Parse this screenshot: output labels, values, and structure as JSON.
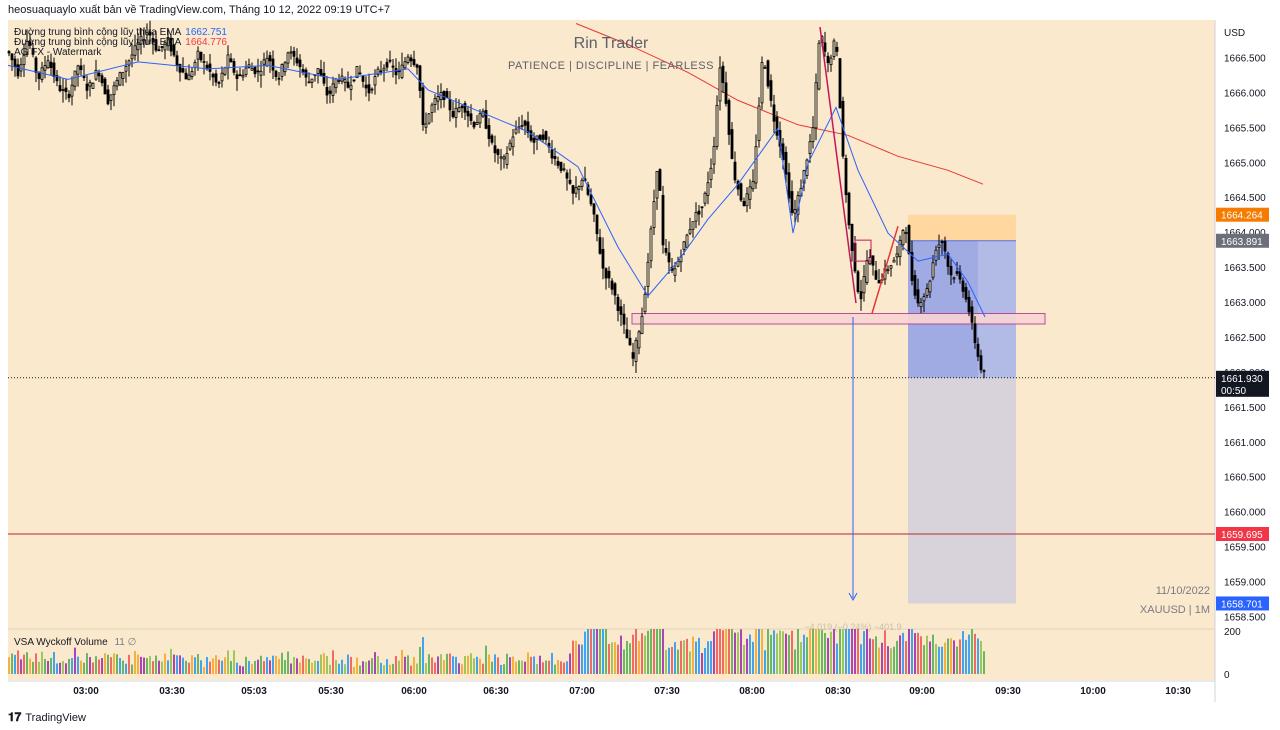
{
  "header": {
    "publisher_line": "heosuaquaylo xuất bản về TradingView.com, Tháng 10 12, 2022 09:19 UTC+7"
  },
  "legend": {
    "rows": [
      {
        "label": "Đường trung bình cộng lũy thừa EMA",
        "value": "1662.751",
        "color": "#2962ff"
      },
      {
        "label": "Đường trung bình cộng lũy thừa EMA",
        "value": "1664.776",
        "color": "#f23645"
      },
      {
        "label": "AG FX - Watermark",
        "value": "",
        "color": "#131722"
      }
    ]
  },
  "watermark": {
    "title": "Rin Trader",
    "subtitle": "PATIENCE   |   DISCIPLINE   |   FEARLESS"
  },
  "corner": {
    "date": "11/10/2022",
    "symbol": "XAUUSD  |  1M"
  },
  "volume_indicator": {
    "label": "VSA Wyckoff Volume",
    "params": "11  ∅",
    "axis_ticks": [
      "200",
      "0"
    ]
  },
  "footer": {
    "brand": "TradingView"
  },
  "measure_label": "−4.019 (−0.24%) −401.9",
  "colors": {
    "background": "#fae9cc",
    "candle": "#000000",
    "ema_fast": "#2962ff",
    "ema_slow": "#e53935",
    "stop_zone": "#ffd59a",
    "profit_zone": "#8fa0e6",
    "extension_zone": "#d4d0dc",
    "support_box_fill": "#f8d6d4",
    "support_box_stroke": "#b43a91",
    "target_line": "#b22833",
    "price_badge_orange": "#f57c00",
    "price_badge_grey": "#6b6f7a",
    "price_badge_black": "#131722",
    "price_badge_red": "#f23645",
    "price_badge_blue": "#2962ff"
  },
  "chart_data": {
    "type": "candlestick",
    "symbol": "XAUUSD",
    "timeframe": "1M",
    "date": "11/10/2022",
    "y_axis": {
      "unit": "USD",
      "range": [
        1658.35,
        1667.05
      ],
      "ticks": [
        "1666.500",
        "1666.000",
        "1665.500",
        "1665.000",
        "1664.500",
        "1664.000",
        "1663.500",
        "1663.000",
        "1662.500",
        "1662.000",
        "1661.500",
        "1661.000",
        "1660.500",
        "1660.000",
        "1659.500",
        "1659.000",
        "1658.500"
      ]
    },
    "x_axis": {
      "ticks": [
        "03:00",
        "03:30",
        "05:03",
        "05:30",
        "06:00",
        "06:30",
        "07:00",
        "07:30",
        "08:00",
        "08:30",
        "09:00",
        "09:30",
        "10:00",
        "10:30"
      ]
    },
    "price_labels": [
      {
        "price": 1664.264,
        "text": "1664.264",
        "role": "stop"
      },
      {
        "price": 1663.891,
        "text": "1663.891",
        "role": "entry"
      },
      {
        "price": 1661.93,
        "text": "1661.930",
        "countdown": "00:50",
        "role": "last"
      },
      {
        "price": 1659.695,
        "text": "1659.695",
        "role": "target-line"
      },
      {
        "price": 1658.701,
        "text": "1658.701",
        "role": "target"
      }
    ],
    "price_path": [
      [
        0,
        1666.6
      ],
      [
        10,
        1666.3
      ],
      [
        20,
        1666.8
      ],
      [
        30,
        1666.2
      ],
      [
        40,
        1666.5
      ],
      [
        50,
        1666.1
      ],
      [
        60,
        1665.95
      ],
      [
        70,
        1666.4
      ],
      [
        80,
        1666.05
      ],
      [
        90,
        1666.35
      ],
      [
        100,
        1665.9
      ],
      [
        110,
        1666.2
      ],
      [
        120,
        1666.45
      ],
      [
        130,
        1666.7
      ],
      [
        140,
        1666.9
      ],
      [
        150,
        1666.6
      ],
      [
        160,
        1666.75
      ],
      [
        170,
        1666.4
      ],
      [
        180,
        1666.2
      ],
      [
        190,
        1666.55
      ],
      [
        200,
        1666.35
      ],
      [
        210,
        1666.1
      ],
      [
        220,
        1666.5
      ],
      [
        230,
        1666.2
      ],
      [
        240,
        1666.4
      ],
      [
        250,
        1666.3
      ],
      [
        260,
        1666.55
      ],
      [
        270,
        1666.2
      ],
      [
        280,
        1666.6
      ],
      [
        290,
        1666.45
      ],
      [
        300,
        1666.15
      ],
      [
        310,
        1666.35
      ],
      [
        320,
        1665.95
      ],
      [
        330,
        1666.25
      ],
      [
        340,
        1666.1
      ],
      [
        350,
        1666.35
      ],
      [
        360,
        1666.0
      ],
      [
        370,
        1666.3
      ],
      [
        380,
        1666.45
      ],
      [
        390,
        1666.25
      ],
      [
        400,
        1666.55
      ],
      [
        410,
        1666.4
      ],
      [
        415,
        1665.5
      ],
      [
        425,
        1665.85
      ],
      [
        435,
        1666.0
      ],
      [
        445,
        1665.7
      ],
      [
        455,
        1665.85
      ],
      [
        465,
        1665.55
      ],
      [
        475,
        1665.7
      ],
      [
        485,
        1665.2
      ],
      [
        495,
        1665.0
      ],
      [
        505,
        1665.4
      ],
      [
        515,
        1665.6
      ],
      [
        525,
        1665.3
      ],
      [
        535,
        1665.4
      ],
      [
        545,
        1665.1
      ],
      [
        555,
        1664.9
      ],
      [
        565,
        1664.55
      ],
      [
        575,
        1664.8
      ],
      [
        585,
        1664.3
      ],
      [
        595,
        1663.5
      ],
      [
        605,
        1663.2
      ],
      [
        615,
        1662.7
      ],
      [
        625,
        1662.2
      ],
      [
        635,
        1662.9
      ],
      [
        645,
        1664.3
      ],
      [
        650,
        1665.1
      ],
      [
        655,
        1663.8
      ],
      [
        665,
        1663.4
      ],
      [
        675,
        1663.8
      ],
      [
        685,
        1664.2
      ],
      [
        695,
        1664.4
      ],
      [
        705,
        1665.1
      ],
      [
        712,
        1666.4
      ],
      [
        718,
        1665.9
      ],
      [
        725,
        1664.9
      ],
      [
        735,
        1664.4
      ],
      [
        745,
        1664.7
      ],
      [
        755,
        1666.6
      ],
      [
        765,
        1665.7
      ],
      [
        775,
        1665.1
      ],
      [
        785,
        1664.2
      ],
      [
        795,
        1664.8
      ],
      [
        805,
        1665.5
      ],
      [
        812,
        1666.9
      ],
      [
        820,
        1666.4
      ],
      [
        828,
        1666.8
      ],
      [
        835,
        1665.1
      ],
      [
        840,
        1664.2
      ],
      [
        848,
        1663.4
      ],
      [
        852,
        1663.0
      ],
      [
        860,
        1663.7
      ],
      [
        870,
        1663.3
      ],
      [
        880,
        1663.5
      ],
      [
        890,
        1663.7
      ],
      [
        897,
        1664.2
      ],
      [
        903,
        1663.4
      ],
      [
        910,
        1663.0
      ],
      [
        920,
        1663.2
      ],
      [
        928,
        1663.8
      ],
      [
        935,
        1663.9
      ],
      [
        942,
        1663.4
      ],
      [
        950,
        1663.4
      ],
      [
        958,
        1663.1
      ],
      [
        965,
        1662.6
      ],
      [
        972,
        1662.1
      ],
      [
        978,
        1661.93
      ]
    ],
    "ema_fast_path": [
      [
        0,
        1666.4
      ],
      [
        60,
        1666.2
      ],
      [
        130,
        1666.45
      ],
      [
        200,
        1666.35
      ],
      [
        260,
        1666.4
      ],
      [
        330,
        1666.2
      ],
      [
        400,
        1666.35
      ],
      [
        420,
        1666.05
      ],
      [
        470,
        1665.75
      ],
      [
        520,
        1665.45
      ],
      [
        570,
        1664.95
      ],
      [
        610,
        1663.8
      ],
      [
        640,
        1663.1
      ],
      [
        670,
        1663.6
      ],
      [
        700,
        1664.2
      ],
      [
        730,
        1664.7
      ],
      [
        770,
        1665.5
      ],
      [
        785,
        1664.0
      ],
      [
        800,
        1665.0
      ],
      [
        828,
        1665.8
      ],
      [
        850,
        1664.9
      ],
      [
        880,
        1664.0
      ],
      [
        910,
        1663.6
      ],
      [
        940,
        1663.7
      ],
      [
        960,
        1663.3
      ],
      [
        977,
        1662.8
      ]
    ],
    "ema_slow_path": [
      [
        568,
        1667.0
      ],
      [
        620,
        1666.7
      ],
      [
        680,
        1666.3
      ],
      [
        730,
        1665.9
      ],
      [
        790,
        1665.55
      ],
      [
        840,
        1665.4
      ],
      [
        890,
        1665.1
      ],
      [
        940,
        1664.9
      ],
      [
        975,
        1664.7
      ]
    ],
    "volume_max": 200,
    "volume_axis_ticks": [
      200,
      0
    ]
  }
}
